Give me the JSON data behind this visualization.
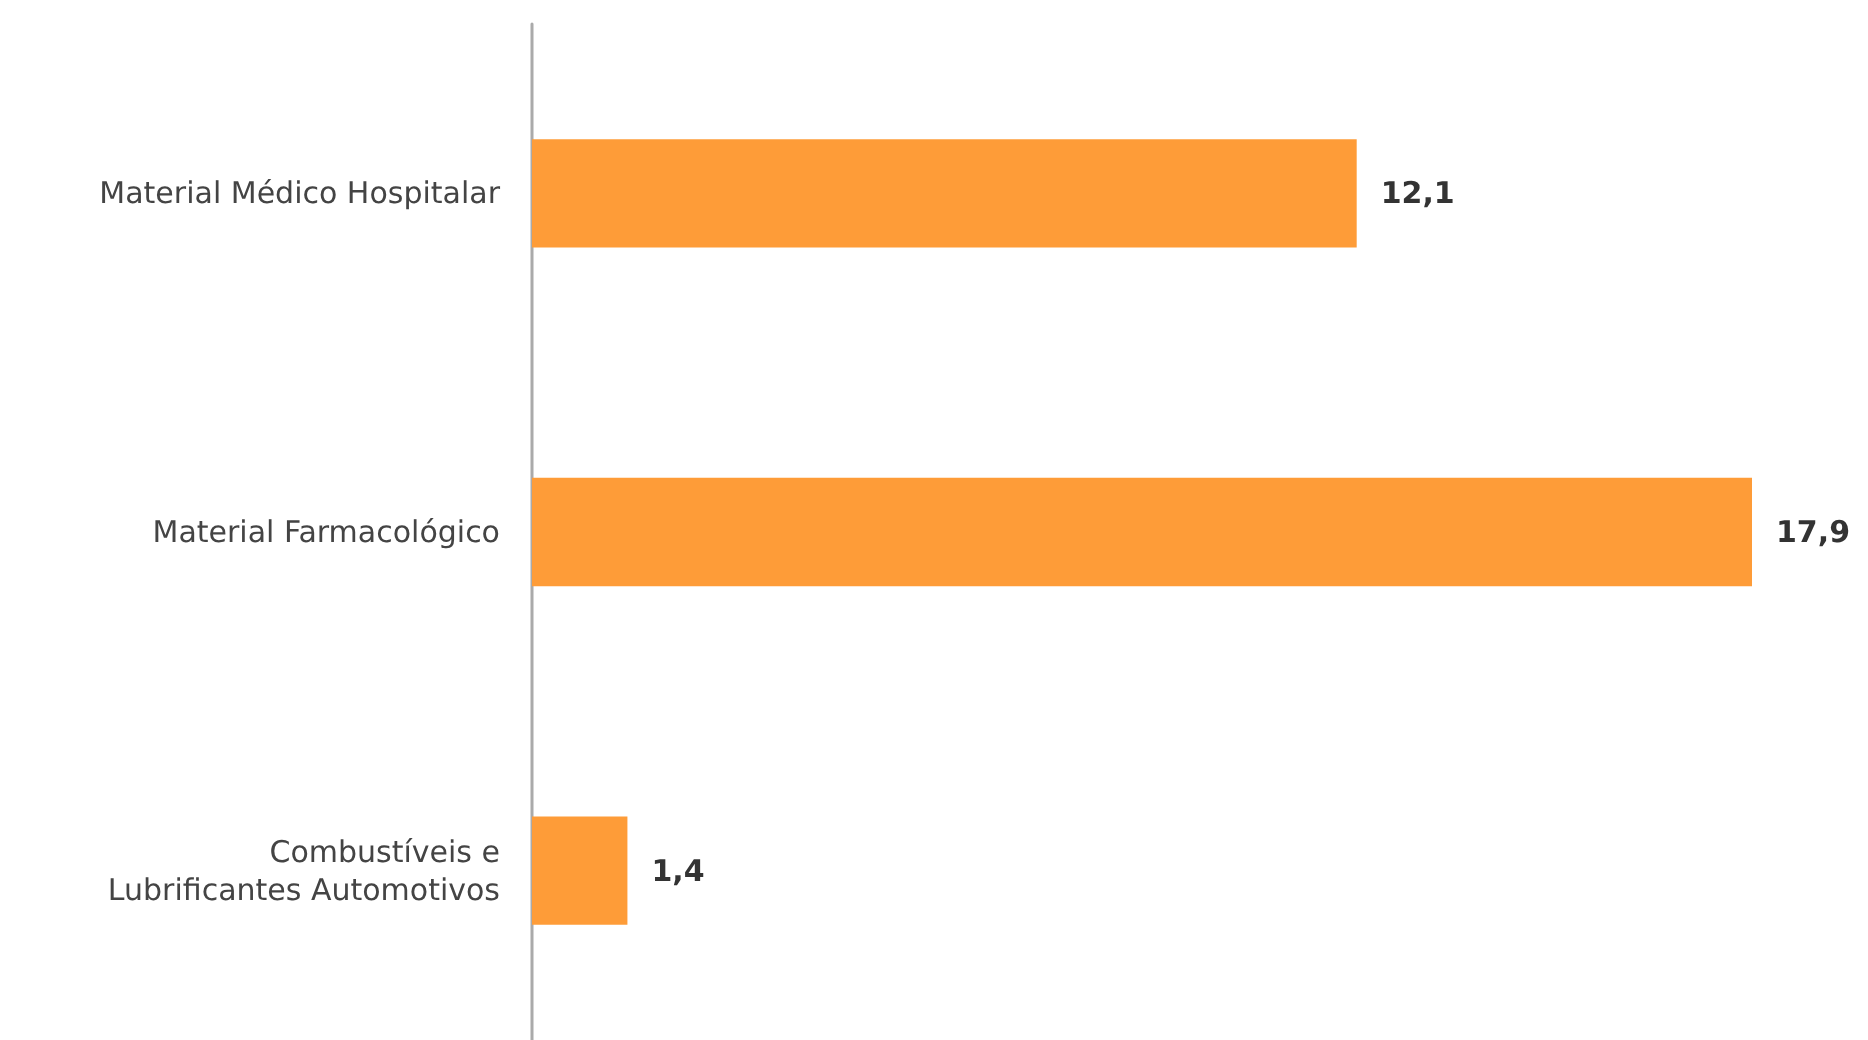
{
  "chart_data": {
    "type": "bar",
    "orientation": "horizontal",
    "categories": [
      "Material Médico Hospitalar",
      "Material Farmacológico",
      "Combustíveis e\nLubrificantes Automotivos"
    ],
    "values": [
      12.1,
      17.9,
      1.4
    ],
    "value_labels": [
      "12,1",
      "17,9",
      "1,4"
    ],
    "color": "#fe9c38",
    "grid": false
  }
}
